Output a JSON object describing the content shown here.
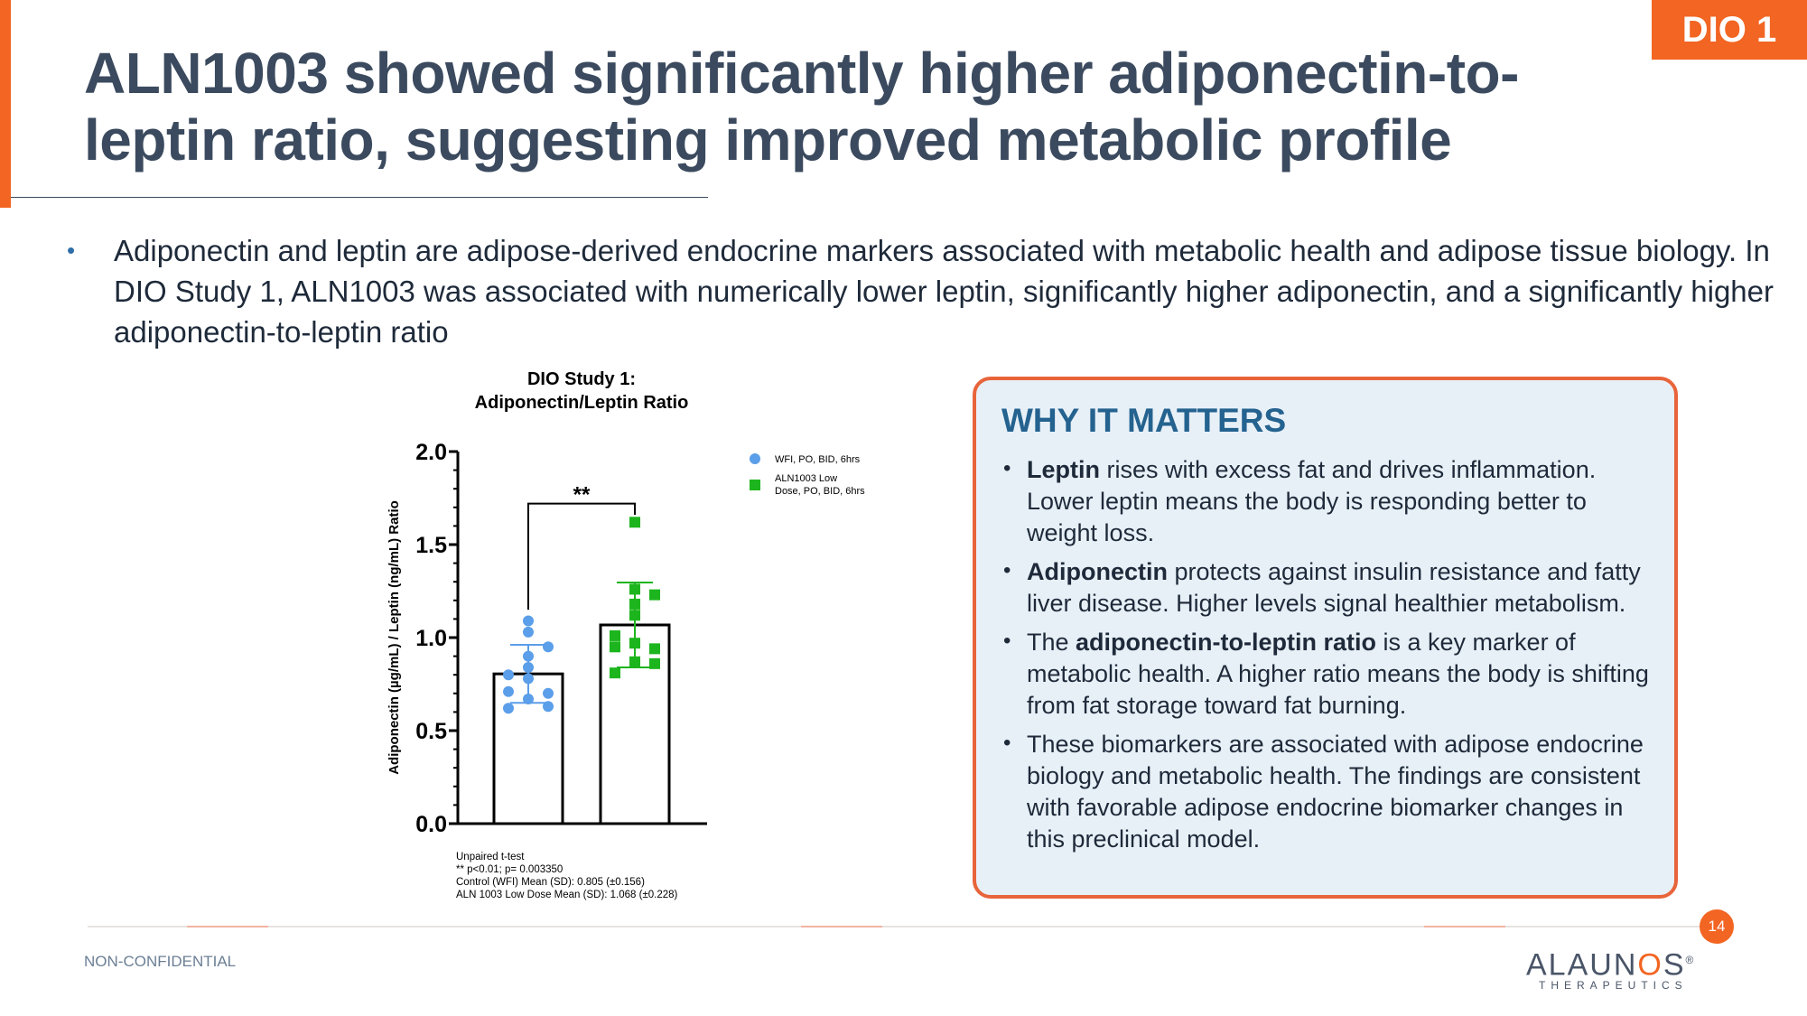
{
  "badge": "DIO 1",
  "title_line1": "ALN1003 showed significantly higher adiponectin-to-",
  "title_line2": "leptin ratio, suggesting improved metabolic profile",
  "bullet": "Adiponectin and leptin are adipose-derived endocrine markers associated with metabolic health and adipose tissue biology. In DIO Study 1, ALN1003 was associated with numerically lower leptin, significantly higher adiponectin, and a significantly higher adiponectin-to-leptin ratio",
  "chart_data": {
    "type": "bar",
    "title_line1": "DIO Study 1:",
    "title_line2": "Adiponectin/Leptin Ratio",
    "ylabel": "Adiponectin (µg/mL) / Leptin (ng/mL) Ratio",
    "ylim": [
      0,
      2.0
    ],
    "yticks": [
      "0.0",
      "0.5",
      "1.0",
      "1.5",
      "2.0"
    ],
    "significance": "**",
    "series": [
      {
        "name": "WFI, PO, BID, 6hrs",
        "mean": 0.805,
        "sd": 0.156,
        "points": [
          1.09,
          1.03,
          0.95,
          0.9,
          0.84,
          0.8,
          0.78,
          0.71,
          0.7,
          0.67,
          0.63,
          0.62
        ],
        "color": "#5b9ee9",
        "marker": "circle"
      },
      {
        "name_line1": "ALN1003 Low",
        "name_line2": "Dose, PO, BID, 6hrs",
        "mean": 1.068,
        "sd": 0.228,
        "points": [
          1.62,
          1.26,
          1.23,
          1.18,
          1.12,
          1.01,
          0.97,
          0.95,
          0.94,
          0.87,
          0.86,
          0.81
        ],
        "color": "#1db51d",
        "marker": "square"
      }
    ],
    "notes": [
      "Unpaired t-test",
      "** p<0.01; p= 0.003350",
      "Control  (WFI) Mean (SD): 0.805 (±0.156)",
      "ALN 1003  Low Dose  Mean (SD): 1.068 (±0.228)"
    ]
  },
  "why": {
    "title": "WHY IT MATTERS",
    "items": [
      {
        "bold": "Leptin",
        "pre": "",
        "post": " rises with excess fat and drives inflammation. Lower leptin means the body is responding better to weight loss."
      },
      {
        "bold": "Adiponectin",
        "pre": "",
        "post": " protects against insulin resistance and fatty liver disease. Higher levels signal healthier metabolism."
      },
      {
        "bold": "adiponectin-to-leptin ratio",
        "pre": "The ",
        "post": " is a key marker of metabolic health. A higher ratio means the body is shifting from fat storage toward fat burning."
      },
      {
        "bold": "",
        "pre": "These biomarkers are associated with adipose endocrine biology and metabolic health. The findings are consistent with favorable adipose endocrine biomarker changes in this preclinical model.",
        "post": ""
      }
    ]
  },
  "footer": {
    "label": "NON-CONFIDENTIAL",
    "page": "14",
    "logo_main_a": "ALAUN",
    "logo_main_o": "O",
    "logo_main_b": "S",
    "logo_mark": "®",
    "logo_sub": "THERAPEUTICS"
  }
}
